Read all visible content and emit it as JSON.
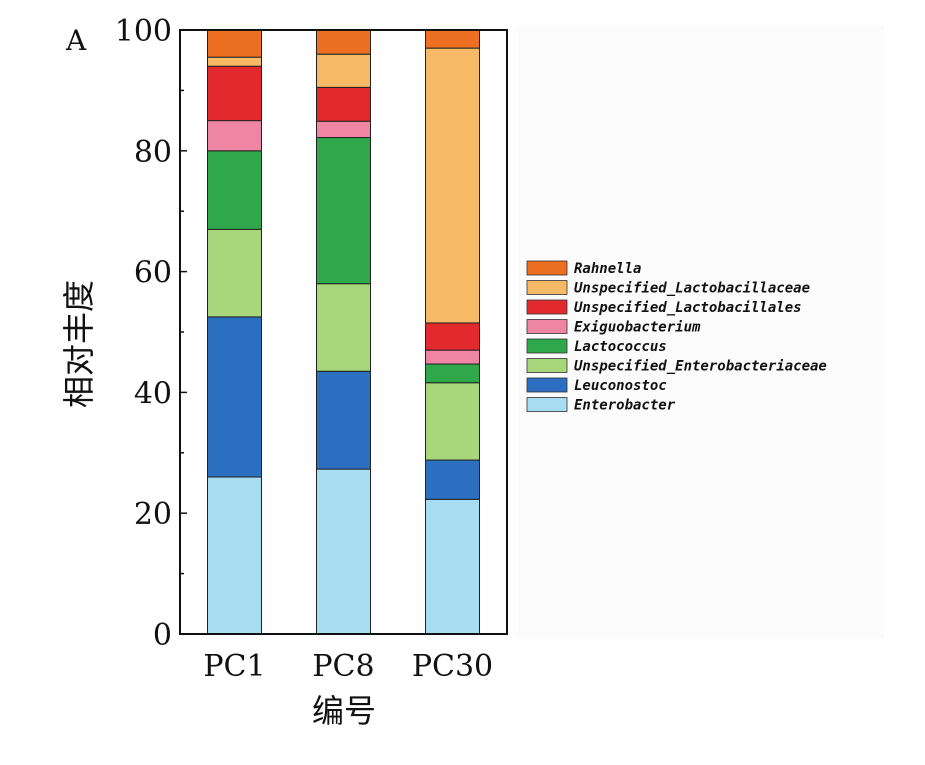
{
  "chart_data": {
    "type": "bar",
    "stacked": true,
    "panel_label": "A",
    "title": "",
    "xlabel": "编号",
    "ylabel": "相对丰度",
    "ylim": [
      0,
      100
    ],
    "yticks": [
      "0",
      "20",
      "40",
      "60",
      "80",
      "100"
    ],
    "categories": [
      "PC1",
      "PC8",
      "PC30"
    ],
    "legend_position": "right",
    "series": [
      {
        "name": "Enterobacter",
        "color": "#a8dcf0",
        "values": [
          26,
          27.3,
          22.3
        ]
      },
      {
        "name": "Leuconostoc",
        "color": "#2c6fc0",
        "values": [
          26.5,
          16.2,
          6.5
        ]
      },
      {
        "name": "Unspecified_Enterobacteriaceae",
        "color": "#a8d67a",
        "values": [
          14.5,
          14.5,
          12.8
        ]
      },
      {
        "name": "Lactococcus",
        "color": "#2ea84a",
        "values": [
          13,
          24.2,
          3.1
        ]
      },
      {
        "name": "Exiguobacterium",
        "color": "#ee85a3",
        "values": [
          5,
          2.7,
          2.3
        ]
      },
      {
        "name": "Unspecified_Lactobacillales",
        "color": "#e22a2e",
        "values": [
          9,
          5.6,
          4.5
        ]
      },
      {
        "name": "Unspecified_Lactobacillaceae",
        "color": "#f6b966",
        "values": [
          1.5,
          5.5,
          45.5
        ]
      },
      {
        "name": "Rahnella",
        "color": "#ec6f22",
        "values": [
          4.5,
          4.0,
          3.0
        ]
      }
    ]
  }
}
